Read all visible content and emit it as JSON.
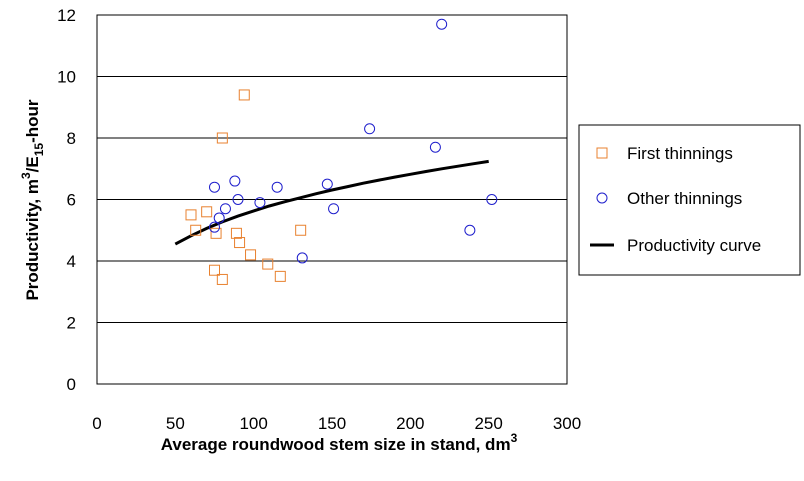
{
  "chart_data": {
    "type": "scatter",
    "title": "",
    "xlabel": {
      "main": "Average roundwood stem size in stand, dm",
      "sup": "3"
    },
    "ylabel": {
      "part1": "Productivity, m",
      "sup": "3",
      "part2": "/E",
      "sub": "15",
      "part3": "-hour"
    },
    "xlim": [
      0,
      300
    ],
    "ylim": [
      0,
      12
    ],
    "xticks": [
      "0",
      "50",
      "100",
      "150",
      "200",
      "250",
      "300"
    ],
    "yticks": [
      "0",
      "2",
      "4",
      "6",
      "8",
      "10",
      "12"
    ],
    "grid": "horizontal",
    "legend_position": "right",
    "series": [
      {
        "name": "First thinnings",
        "marker": "square",
        "color": "#E8812F",
        "points": [
          [
            60,
            5.5
          ],
          [
            63,
            5.0
          ],
          [
            70,
            5.6
          ],
          [
            75,
            3.7
          ],
          [
            76,
            4.9
          ],
          [
            80,
            8.0
          ],
          [
            80,
            3.4
          ],
          [
            89,
            4.9
          ],
          [
            91,
            4.6
          ],
          [
            94,
            9.4
          ],
          [
            98,
            4.2
          ],
          [
            109,
            3.9
          ],
          [
            117,
            3.5
          ],
          [
            130,
            5.0
          ]
        ]
      },
      {
        "name": "Other thinnings",
        "marker": "circle",
        "color": "#1F1FCC",
        "points": [
          [
            75,
            6.4
          ],
          [
            75,
            5.1
          ],
          [
            78,
            5.4
          ],
          [
            82,
            5.7
          ],
          [
            88,
            6.6
          ],
          [
            90,
            6.0
          ],
          [
            104,
            5.9
          ],
          [
            115,
            6.4
          ],
          [
            131,
            4.1
          ],
          [
            147,
            6.5
          ],
          [
            151,
            5.7
          ],
          [
            174,
            8.3
          ],
          [
            216,
            7.7
          ],
          [
            220,
            11.7
          ],
          [
            238,
            5.0
          ],
          [
            252,
            6.0
          ]
        ]
      },
      {
        "name": "Productivity curve",
        "type": "line",
        "color": "#000000",
        "x": [
          50,
          60,
          70,
          80,
          90,
          100,
          110,
          120,
          130,
          140,
          150,
          160,
          170,
          180,
          190,
          200,
          210,
          220,
          230,
          240,
          250
        ],
        "y": [
          4.55,
          4.82,
          5.06,
          5.27,
          5.46,
          5.63,
          5.79,
          5.93,
          6.06,
          6.19,
          6.31,
          6.42,
          6.53,
          6.63,
          6.73,
          6.82,
          6.91,
          7.0,
          7.08,
          7.16,
          7.24
        ]
      }
    ]
  }
}
